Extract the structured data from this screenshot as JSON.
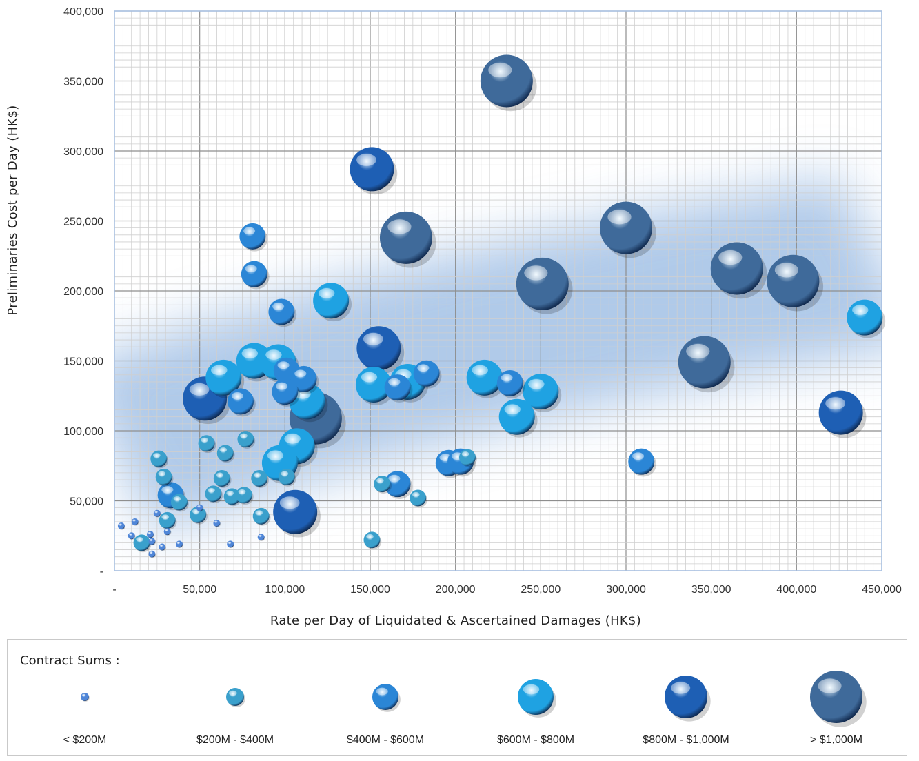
{
  "chart_data": {
    "type": "scatter",
    "title": "",
    "xlabel": "Rate per Day of Liquidated & Ascertained Damages (HK$)",
    "ylabel": "Preliminaries Cost per Day (HK$)",
    "xlim": [
      0,
      450000
    ],
    "ylim": [
      0,
      400000
    ],
    "x_ticks": [
      "-",
      "50,000",
      "100,000",
      "150,000",
      "200,000",
      "250,000",
      "300,000",
      "350,000",
      "400,000",
      "450,000"
    ],
    "y_ticks": [
      "-",
      "50,000",
      "100,000",
      "150,000",
      "200,000",
      "250,000",
      "300,000",
      "350,000",
      "400,000"
    ],
    "grid": true,
    "trend_band": true,
    "size_legend": {
      "title": "Contract Sums :",
      "categories": [
        "< $200M",
        "$200M - $400M",
        "$400M - $600M",
        "$600M - $800M",
        "$800M - $1,000M",
        "> $1,000M"
      ],
      "colors": [
        "#4f86d8",
        "#3aa0cc",
        "#2b86d6",
        "#1fa2e2",
        "#1e5fb4",
        "#3f6a9a"
      ]
    },
    "points": [
      {
        "x": 230000,
        "y": 350000,
        "size": 5
      },
      {
        "x": 151000,
        "y": 287000,
        "size": 4
      },
      {
        "x": 171000,
        "y": 238000,
        "size": 5
      },
      {
        "x": 300000,
        "y": 245000,
        "size": 5
      },
      {
        "x": 251000,
        "y": 205000,
        "size": 5
      },
      {
        "x": 365000,
        "y": 216000,
        "size": 5
      },
      {
        "x": 398000,
        "y": 207000,
        "size": 5
      },
      {
        "x": 440000,
        "y": 181000,
        "size": 3
      },
      {
        "x": 346000,
        "y": 149000,
        "size": 5
      },
      {
        "x": 426000,
        "y": 113000,
        "size": 4
      },
      {
        "x": 309000,
        "y": 78000,
        "size": 2
      },
      {
        "x": 81000,
        "y": 239000,
        "size": 2
      },
      {
        "x": 82000,
        "y": 212000,
        "size": 2
      },
      {
        "x": 98000,
        "y": 185000,
        "size": 2
      },
      {
        "x": 127000,
        "y": 193000,
        "size": 3
      },
      {
        "x": 155000,
        "y": 159000,
        "size": 4
      },
      {
        "x": 152000,
        "y": 133000,
        "size": 3
      },
      {
        "x": 166000,
        "y": 131000,
        "size": 2
      },
      {
        "x": 172000,
        "y": 135000,
        "size": 3
      },
      {
        "x": 183000,
        "y": 141000,
        "size": 2
      },
      {
        "x": 217000,
        "y": 138000,
        "size": 3
      },
      {
        "x": 232000,
        "y": 134000,
        "size": 2
      },
      {
        "x": 250000,
        "y": 128000,
        "size": 3
      },
      {
        "x": 236000,
        "y": 110000,
        "size": 3
      },
      {
        "x": 196000,
        "y": 77000,
        "size": 2
      },
      {
        "x": 203000,
        "y": 78000,
        "size": 2
      },
      {
        "x": 207000,
        "y": 81000,
        "size": 1
      },
      {
        "x": 166000,
        "y": 62000,
        "size": 2
      },
      {
        "x": 157000,
        "y": 62000,
        "size": 1
      },
      {
        "x": 178000,
        "y": 52000,
        "size": 1
      },
      {
        "x": 151000,
        "y": 22000,
        "size": 1
      },
      {
        "x": 64000,
        "y": 138000,
        "size": 3
      },
      {
        "x": 82000,
        "y": 150000,
        "size": 3
      },
      {
        "x": 96000,
        "y": 149000,
        "size": 3
      },
      {
        "x": 101000,
        "y": 143000,
        "size": 2
      },
      {
        "x": 111000,
        "y": 137000,
        "size": 2
      },
      {
        "x": 100000,
        "y": 128000,
        "size": 2
      },
      {
        "x": 53000,
        "y": 123000,
        "size": 4
      },
      {
        "x": 74000,
        "y": 121000,
        "size": 2
      },
      {
        "x": 113000,
        "y": 121000,
        "size": 3
      },
      {
        "x": 118000,
        "y": 109000,
        "size": 5
      },
      {
        "x": 107000,
        "y": 89000,
        "size": 3
      },
      {
        "x": 97000,
        "y": 77000,
        "size": 3
      },
      {
        "x": 101000,
        "y": 67000,
        "size": 1
      },
      {
        "x": 106000,
        "y": 42000,
        "size": 4
      },
      {
        "x": 54000,
        "y": 91000,
        "size": 1
      },
      {
        "x": 65000,
        "y": 84000,
        "size": 1
      },
      {
        "x": 77000,
        "y": 94000,
        "size": 1
      },
      {
        "x": 63000,
        "y": 66000,
        "size": 1
      },
      {
        "x": 85000,
        "y": 66000,
        "size": 1
      },
      {
        "x": 58000,
        "y": 55000,
        "size": 1
      },
      {
        "x": 69000,
        "y": 53000,
        "size": 1
      },
      {
        "x": 76000,
        "y": 54000,
        "size": 1
      },
      {
        "x": 86000,
        "y": 39000,
        "size": 1
      },
      {
        "x": 60000,
        "y": 34000,
        "size": 0
      },
      {
        "x": 86000,
        "y": 24000,
        "size": 0
      },
      {
        "x": 68000,
        "y": 19000,
        "size": 0
      },
      {
        "x": 26000,
        "y": 80000,
        "size": 1
      },
      {
        "x": 29000,
        "y": 67000,
        "size": 1
      },
      {
        "x": 33000,
        "y": 54000,
        "size": 2
      },
      {
        "x": 38000,
        "y": 49000,
        "size": 1
      },
      {
        "x": 31000,
        "y": 36000,
        "size": 1
      },
      {
        "x": 49000,
        "y": 40000,
        "size": 1
      },
      {
        "x": 50000,
        "y": 45000,
        "size": 0
      },
      {
        "x": 25000,
        "y": 41000,
        "size": 0
      },
      {
        "x": 12000,
        "y": 35000,
        "size": 0
      },
      {
        "x": 4000,
        "y": 32000,
        "size": 0
      },
      {
        "x": 10000,
        "y": 25000,
        "size": 0
      },
      {
        "x": 21000,
        "y": 26000,
        "size": 0
      },
      {
        "x": 31000,
        "y": 28000,
        "size": 0
      },
      {
        "x": 16000,
        "y": 20000,
        "size": 1
      },
      {
        "x": 22000,
        "y": 21000,
        "size": 0
      },
      {
        "x": 28000,
        "y": 17000,
        "size": 0
      },
      {
        "x": 38000,
        "y": 19000,
        "size": 0
      },
      {
        "x": 22000,
        "y": 12000,
        "size": 0
      }
    ]
  }
}
